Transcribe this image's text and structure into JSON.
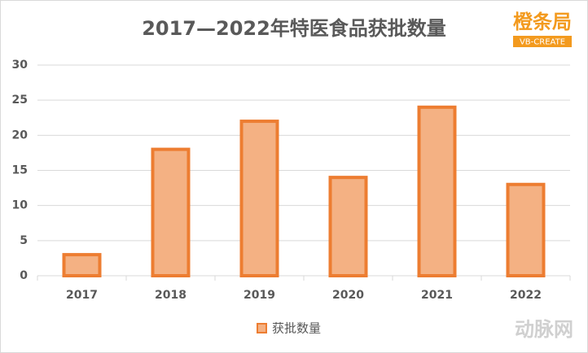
{
  "chart_data": {
    "type": "bar",
    "title": "2017—2022年特医食品获批数量",
    "categories": [
      "2017",
      "2018",
      "2019",
      "2020",
      "2021",
      "2022"
    ],
    "series": [
      {
        "name": "获批数量",
        "color": "#ed7d31",
        "fill": "#f4b183",
        "values": [
          3,
          18,
          22,
          14,
          24,
          13
        ]
      }
    ],
    "ylim": [
      0,
      30
    ],
    "yticks": [
      0,
      5,
      10,
      15,
      20,
      25,
      30
    ],
    "grid": true,
    "legend": "bottom"
  },
  "logo": {
    "text": "橙条局",
    "subtext": "VB-CREATE"
  },
  "watermark": "动脉网"
}
